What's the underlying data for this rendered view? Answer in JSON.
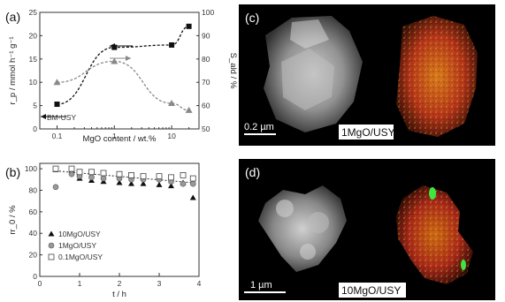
{
  "chart_data": [
    {
      "type": "line",
      "panel": "(a)",
      "xlabel": "MgO content / wt.%",
      "xscale": "log",
      "xlim": [
        0.05,
        30
      ],
      "xticks": [
        "0.1",
        "1",
        "10"
      ],
      "y_left": {
        "label": "r_p / mmol h⁻¹ g⁻¹",
        "lim": [
          0,
          25
        ],
        "ticks": [
          "0",
          "5",
          "10",
          "15",
          "20",
          "25"
        ]
      },
      "y_right": {
        "label": "S_ald / %",
        "lim": [
          50,
          100
        ],
        "ticks": [
          "50",
          "60",
          "70",
          "80",
          "90",
          "100"
        ]
      },
      "series": [
        {
          "axis": "left",
          "x": [
            0.1,
            1,
            10,
            20
          ],
          "y": [
            5.3,
            17.5,
            18,
            22
          ],
          "color": "#111111"
        },
        {
          "axis": "right",
          "x": [
            0.1,
            1,
            10,
            20
          ],
          "y": [
            70,
            79,
            61,
            58
          ],
          "color": "#888888"
        }
      ],
      "annotation": "BM-USY",
      "annotation_value": 2.6
    },
    {
      "type": "scatter",
      "panel": "(b)",
      "xlabel": "t / h",
      "ylabel": "rr_0 / %",
      "xlim": [
        0,
        4
      ],
      "ylim": [
        0,
        105
      ],
      "xticks": [
        "0",
        "1",
        "2",
        "3",
        "4"
      ],
      "yticks": [
        "0",
        "20",
        "40",
        "60",
        "80",
        "100"
      ],
      "series": [
        {
          "name": "10MgO/USY",
          "x": [
            0.4,
            0.8,
            1.0,
            1.3,
            1.6,
            2.0,
            2.3,
            2.6,
            3.0,
            3.3,
            3.6,
            3.85
          ],
          "y": [
            99,
            98,
            91,
            89,
            88,
            87,
            86,
            86,
            85,
            84,
            87,
            73
          ]
        },
        {
          "name": "1MgO/USY",
          "x": [
            0.4,
            0.8,
            1.0,
            1.3,
            1.6,
            2.0,
            2.3,
            2.6,
            3.0,
            3.3,
            3.6,
            3.85
          ],
          "y": [
            83,
            95,
            93,
            92,
            91,
            91,
            90,
            90,
            90,
            88,
            86,
            86
          ]
        },
        {
          "name": "0.1MgO/USY",
          "x": [
            0.4,
            0.8,
            1.0,
            1.3,
            1.6,
            2.0,
            2.3,
            2.6,
            3.0,
            3.3,
            3.6,
            3.85
          ],
          "y": [
            100,
            100,
            97,
            97,
            96,
            95,
            94,
            93,
            93,
            92,
            94,
            91
          ]
        }
      ],
      "trend_line": {
        "x": [
          0.4,
          3.85
        ],
        "y": [
          98,
          87
        ]
      }
    }
  ],
  "image_panels": [
    {
      "label": "(c)",
      "scale_bar": "0.2 µm",
      "sample": "1MgO/USY"
    },
    {
      "label": "(d)",
      "scale_bar": "1 µm",
      "sample": "10MgO/USY"
    }
  ]
}
